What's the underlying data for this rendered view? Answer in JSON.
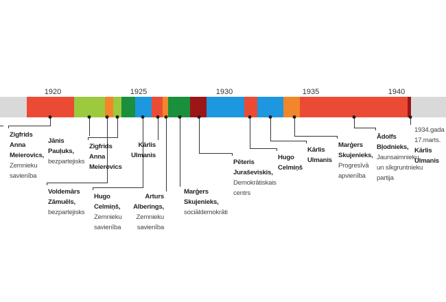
{
  "timeline": {
    "years": [
      "1920",
      "1925",
      "1930",
      "1935",
      "1940"
    ],
    "colors": {
      "red": "#eb4b35",
      "light_green": "#9cc93e",
      "orange": "#f2862b",
      "dark_green": "#1a8f3c",
      "blue": "#1c97e0",
      "dark_red": "#9c1618",
      "grey": "#d9d9d9"
    }
  },
  "labels": [
    {
      "name": "Zigfrids\nAnna\nMeierovics,",
      "party": "Zemnieku\nsavienība"
    },
    {
      "name": "Jānis\nPauļuks,",
      "party": "bezpartejisks"
    },
    {
      "name": "Voldemārs\nZāmuēls,",
      "party": "bezpartejisks"
    },
    {
      "name": "Zigfrids\nAnna\nMeierovics",
      "party": ""
    },
    {
      "name": "Hugo\nCelmiņš,",
      "party": "Zemnieku\nsavienība"
    },
    {
      "name": "Kārlis\nUlmanis",
      "party": ""
    },
    {
      "name": "Arturs\nAlberings,",
      "party": "Zemnieku\nsavienība"
    },
    {
      "name": "Marģers\nSkujenieks,",
      "party": "sociāldemokrāti"
    },
    {
      "name": "Pēteris\nJuraševiskis,",
      "party": "Demokrātiskais\ncentrs"
    },
    {
      "name": "Hugo\nCelmiņš",
      "party": ""
    },
    {
      "name": "Kārlis\nUlmanis",
      "party": ""
    },
    {
      "name": "Marģers\nSkujenieks,",
      "party": "Progresīvā\napvienība"
    },
    {
      "name": "Ādolfs\nBļodnieks,",
      "party": "Jaunsaimnieku\nun sīkgruntnieku\npartija"
    },
    {
      "name": "Kārlis\nUlmanis",
      "party": "1934.gada\n17.marts."
    }
  ]
}
